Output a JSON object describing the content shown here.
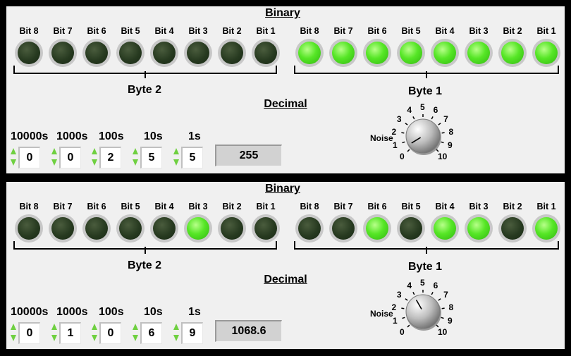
{
  "labels": {
    "binary_title": "Binary",
    "decimal_title": "Decimal",
    "byte2": "Byte 2",
    "byte1": "Byte 1",
    "bit_labels": [
      "Bit 8",
      "Bit 7",
      "Bit 6",
      "Bit 5",
      "Bit 4",
      "Bit 3",
      "Bit 2",
      "Bit 1"
    ],
    "digit_labels": [
      "10000s",
      "1000s",
      "100s",
      "10s",
      "1s"
    ],
    "noise_label": "Noise",
    "knob_scale": [
      "0",
      "1",
      "2",
      "3",
      "4",
      "5",
      "6",
      "7",
      "8",
      "9",
      "10"
    ]
  },
  "colors": {
    "led_on": "#56e626",
    "led_off": "#273a20",
    "panel_bg": "#f0f0f0",
    "spinner_arrow": "#6fd040"
  },
  "panels": [
    {
      "byte2_leds": [
        false,
        false,
        false,
        false,
        false,
        false,
        false,
        false
      ],
      "byte1_leds": [
        true,
        true,
        true,
        true,
        true,
        true,
        true,
        true
      ],
      "digits": [
        "0",
        "0",
        "2",
        "5",
        "5"
      ],
      "decimal_value": "255",
      "noise_value": 0.5
    },
    {
      "byte2_leds": [
        false,
        false,
        false,
        false,
        false,
        true,
        false,
        false
      ],
      "byte1_leds": [
        false,
        false,
        true,
        false,
        true,
        true,
        false,
        true
      ],
      "digits": [
        "0",
        "1",
        "0",
        "6",
        "9"
      ],
      "decimal_value": "1068.6",
      "noise_value": 3.9
    }
  ]
}
